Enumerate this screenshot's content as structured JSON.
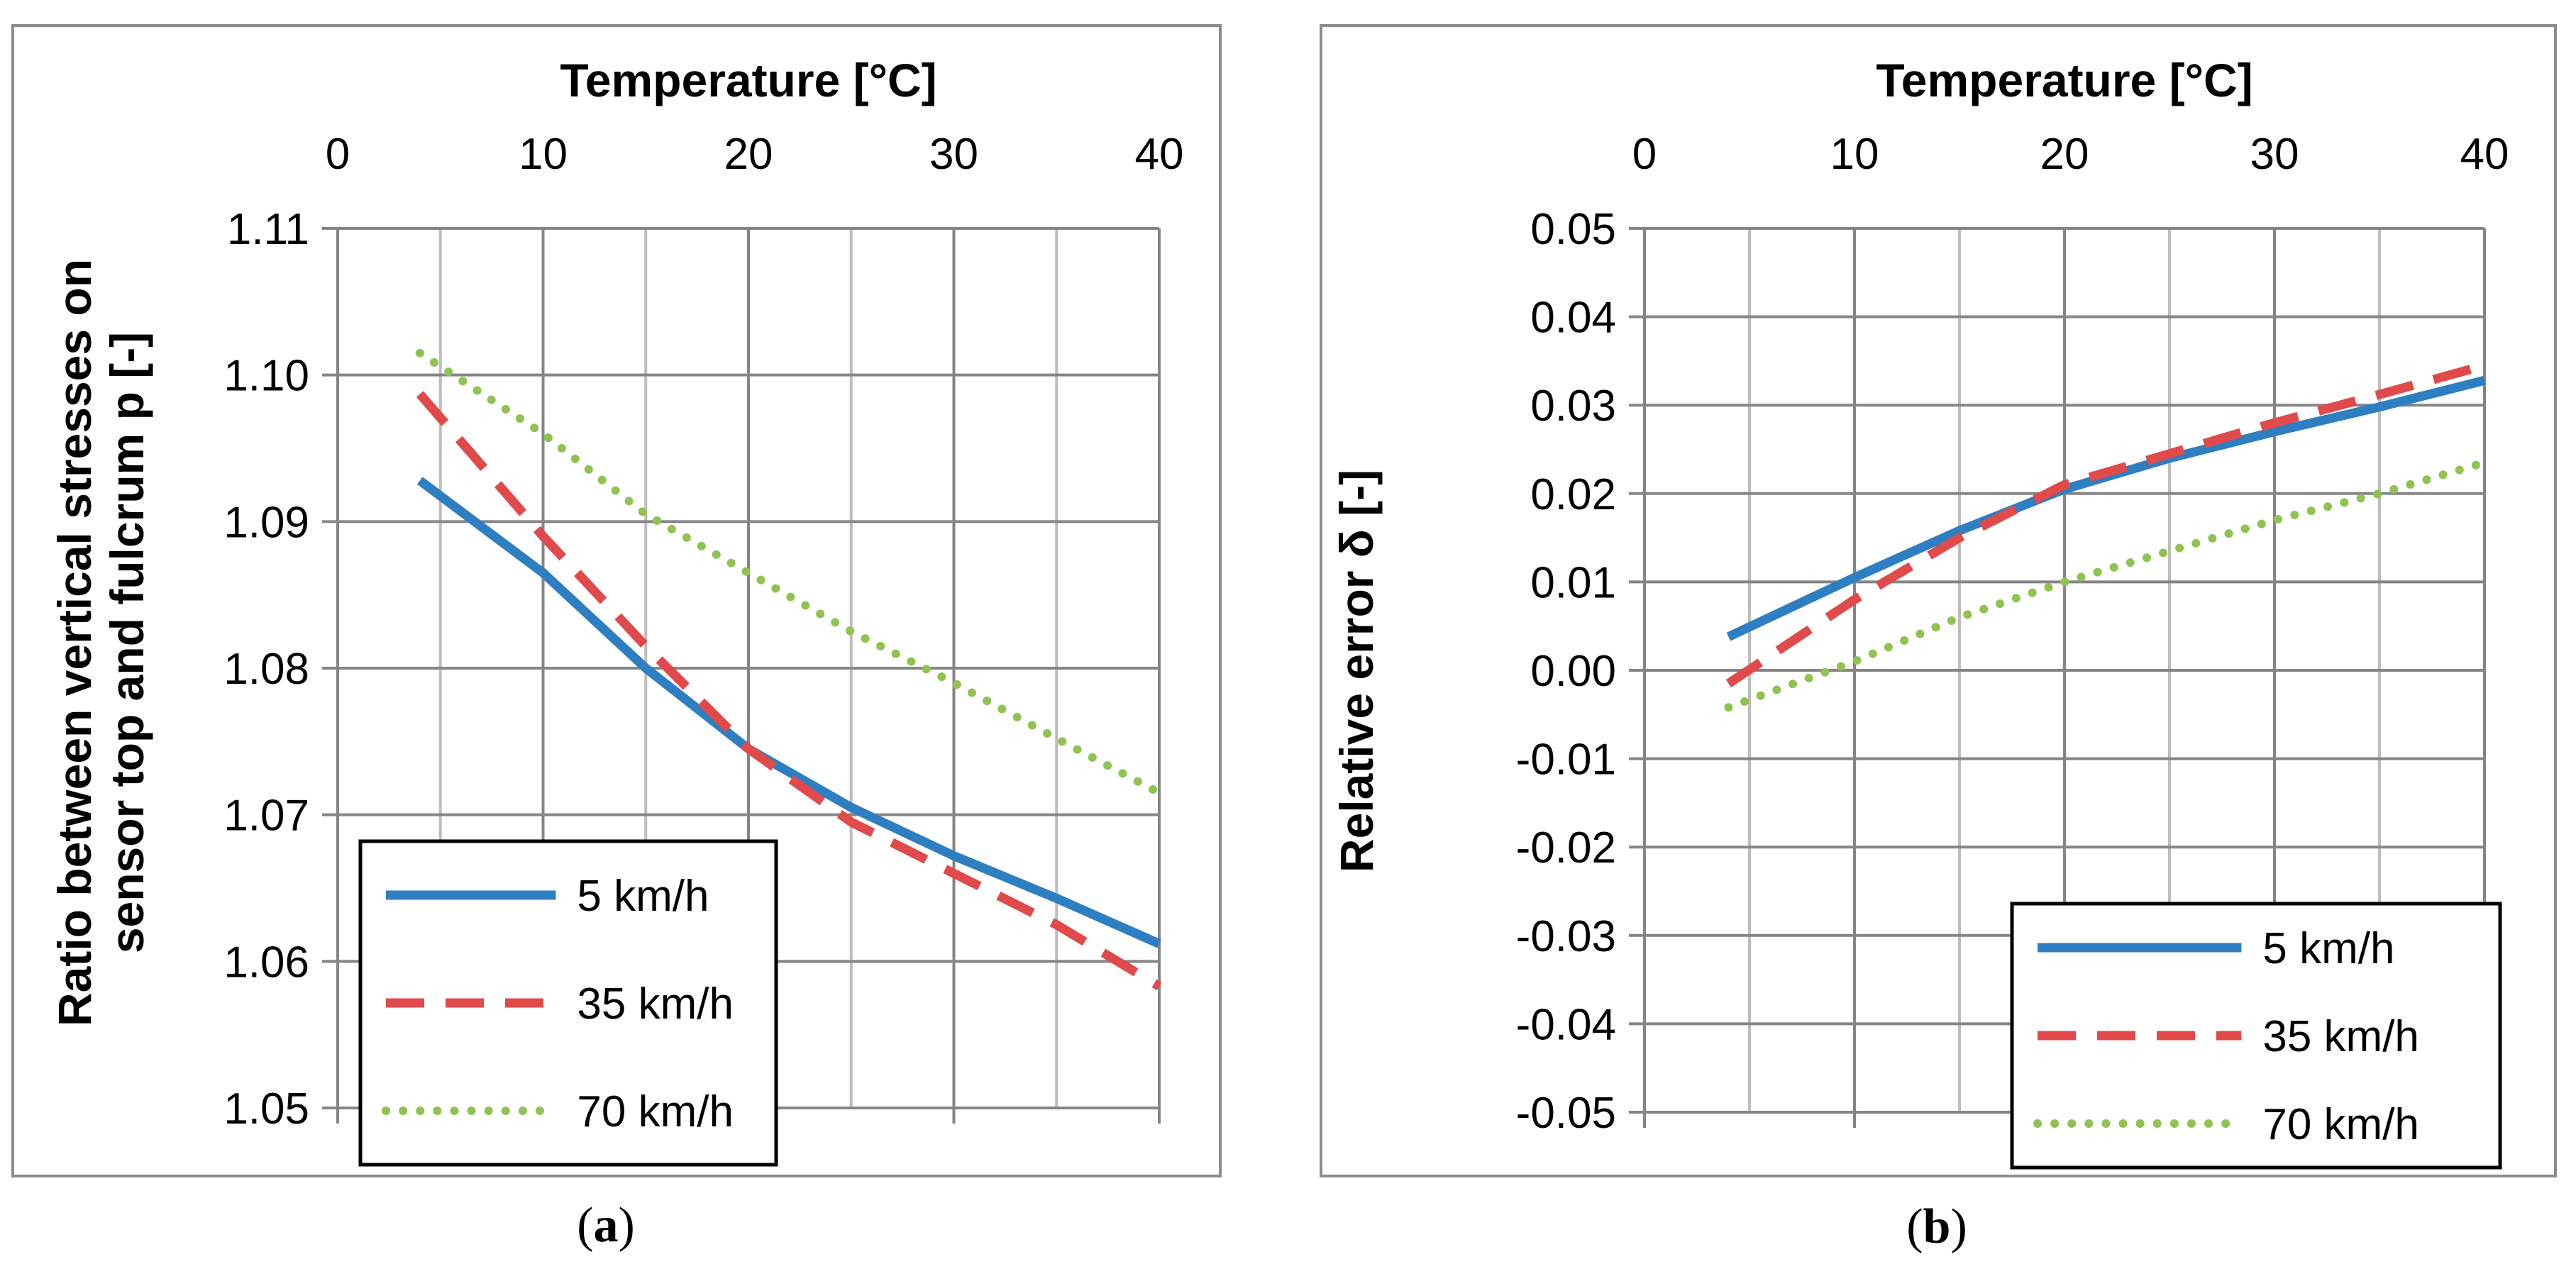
{
  "chart_data": [
    {
      "id": "a",
      "type": "line",
      "caption_letter": "a",
      "title": "",
      "xlabel": "Temperature [°C]",
      "ylabel_lines": [
        "Ratio between vertical stresses on",
        "sensor top and fulcrum p [-]"
      ],
      "xlim": [
        0,
        40
      ],
      "ylim": [
        1.05,
        1.11
      ],
      "x_ticks": [
        0,
        10,
        20,
        30,
        40
      ],
      "x_tick_labels": [
        "0",
        "10",
        "20",
        "30",
        "40"
      ],
      "y_ticks": [
        1.05,
        1.06,
        1.07,
        1.08,
        1.09,
        1.1,
        1.11
      ],
      "y_tick_labels": [
        "1.05",
        "1.06",
        "1.07",
        "1.08",
        "1.09",
        "1.10",
        "1.11"
      ],
      "grid": true,
      "legend_position": "bottom-left",
      "series": [
        {
          "name": "5 km/h",
          "style": "solid",
          "color": "#2E7EC2",
          "x": [
            4,
            10,
            15,
            20,
            25,
            30,
            35,
            40
          ],
          "y": [
            1.0928,
            1.0865,
            1.08,
            1.0745,
            1.0705,
            1.0672,
            1.0643,
            1.0612
          ]
        },
        {
          "name": "35 km/h",
          "style": "dashed",
          "color": "#E04A4A",
          "x": [
            4,
            10,
            15,
            20,
            25,
            30,
            35,
            40
          ],
          "y": [
            1.0987,
            1.089,
            1.0815,
            1.0745,
            1.0695,
            1.066,
            1.0625,
            1.0583
          ]
        },
        {
          "name": "70 km/h",
          "style": "dotted",
          "color": "#8FC352",
          "x": [
            4,
            10,
            15,
            20,
            25,
            30,
            35,
            40
          ],
          "y": [
            1.1015,
            1.096,
            1.0905,
            1.0865,
            1.0825,
            1.079,
            1.0752,
            1.0715
          ]
        }
      ]
    },
    {
      "id": "b",
      "type": "line",
      "caption_letter": "b",
      "title": "",
      "xlabel": "Temperature [°C]",
      "ylabel_lines": [
        "Relative error δ [-]"
      ],
      "xlim": [
        0,
        40
      ],
      "ylim": [
        -0.05,
        0.05
      ],
      "x_ticks": [
        0,
        10,
        20,
        30,
        40
      ],
      "x_tick_labels": [
        "0",
        "10",
        "20",
        "30",
        "40"
      ],
      "y_ticks": [
        -0.05,
        -0.04,
        -0.03,
        -0.02,
        -0.01,
        0.0,
        0.01,
        0.02,
        0.03,
        0.04,
        0.05
      ],
      "y_tick_labels": [
        "-0.05",
        "-0.04",
        "-0.03",
        "-0.02",
        "-0.01",
        "0.00",
        "0.01",
        "0.02",
        "0.03",
        "0.04",
        "0.05"
      ],
      "grid": true,
      "legend_position": "bottom-right",
      "series": [
        {
          "name": "5 km/h",
          "style": "solid",
          "color": "#2E7EC2",
          "x": [
            4,
            10,
            15,
            20,
            25,
            30,
            35,
            40
          ],
          "y": [
            0.0038,
            0.0105,
            0.0158,
            0.0205,
            0.024,
            0.027,
            0.0298,
            0.0328
          ]
        },
        {
          "name": "35 km/h",
          "style": "dashed",
          "color": "#E04A4A",
          "x": [
            4,
            10,
            15,
            20,
            25,
            30,
            35,
            40
          ],
          "y": [
            -0.0015,
            0.008,
            0.015,
            0.021,
            0.0245,
            0.028,
            0.0312,
            0.0345
          ]
        },
        {
          "name": "70 km/h",
          "style": "dotted",
          "color": "#8FC352",
          "x": [
            4,
            10,
            15,
            20,
            25,
            30,
            35,
            40
          ],
          "y": [
            -0.0042,
            0.001,
            0.006,
            0.01,
            0.0135,
            0.017,
            0.02,
            0.0235
          ]
        }
      ]
    }
  ]
}
